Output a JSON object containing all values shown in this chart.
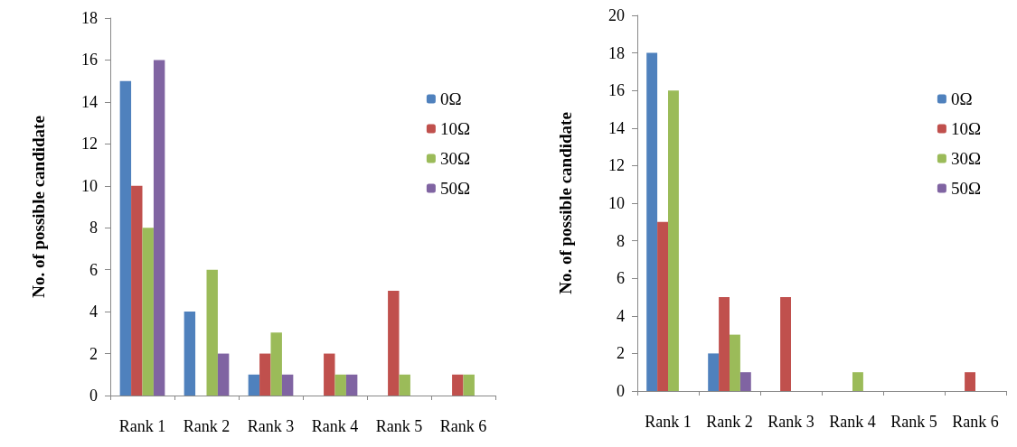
{
  "chart_data": [
    {
      "type": "bar",
      "ylabel": "No. of possible candidate",
      "categories": [
        "Rank 1",
        "Rank 2",
        "Rank 3",
        "Rank 4",
        "Rank 5",
        "Rank 6"
      ],
      "ylim": [
        0,
        18
      ],
      "yticks": [
        0,
        2,
        4,
        6,
        8,
        10,
        12,
        14,
        16,
        18
      ],
      "grid": false,
      "legend": "top right",
      "series": [
        {
          "name": "0Ω",
          "color": "#4f81bd",
          "values": [
            15,
            4,
            1,
            0,
            0,
            0
          ]
        },
        {
          "name": "10Ω",
          "color": "#c0504d",
          "values": [
            10,
            0,
            2,
            2,
            5,
            1
          ]
        },
        {
          "name": "30Ω",
          "color": "#9bbb59",
          "values": [
            8,
            6,
            3,
            1,
            1,
            1
          ]
        },
        {
          "name": "50Ω",
          "color": "#8064a2",
          "values": [
            16,
            2,
            1,
            1,
            0,
            0
          ]
        }
      ]
    },
    {
      "type": "bar",
      "ylabel": "No. of possible candidate",
      "categories": [
        "Rank 1",
        "Rank 2",
        "Rank 3",
        "Rank 4",
        "Rank 5",
        "Rank 6"
      ],
      "ylim": [
        0,
        20
      ],
      "yticks": [
        0,
        2,
        4,
        6,
        8,
        10,
        12,
        14,
        16,
        18,
        20
      ],
      "grid": false,
      "legend": "top right",
      "series": [
        {
          "name": "0Ω",
          "color": "#4f81bd",
          "values": [
            18,
            2,
            0,
            0,
            0,
            0
          ]
        },
        {
          "name": "10Ω",
          "color": "#c0504d",
          "values": [
            9,
            5,
            5,
            0,
            0,
            1
          ]
        },
        {
          "name": "30Ω",
          "color": "#9bbb59",
          "values": [
            16,
            3,
            0,
            1,
            0,
            0
          ]
        },
        {
          "name": "50Ω",
          "color": "#8064a2",
          "values": [
            0,
            1,
            0,
            0,
            0,
            0
          ]
        }
      ]
    }
  ]
}
